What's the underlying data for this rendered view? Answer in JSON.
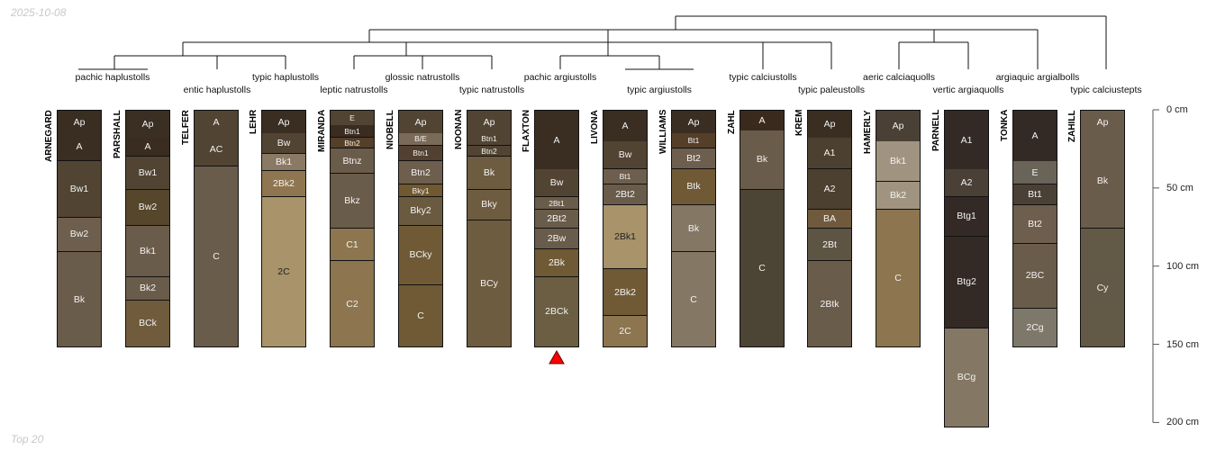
{
  "date": "2025-10-08",
  "footer": "Top 20",
  "taxa": [
    {
      "label": "pachic haplustolls",
      "row": 0
    },
    {
      "label": "entic haplustolls",
      "row": 1
    },
    {
      "label": "typic haplustolls",
      "row": 0
    },
    {
      "label": "leptic natrustolls",
      "row": 1
    },
    {
      "label": "glossic natrustolls",
      "row": 0
    },
    {
      "label": "typic natrustolls",
      "row": 1
    },
    {
      "label": "pachic argiustolls",
      "row": 0
    },
    {
      "label": "typic argiustolls",
      "row": 1
    },
    {
      "label": "typic calciustolls",
      "row": 0
    },
    {
      "label": "typic paleustolls",
      "row": 1
    },
    {
      "label": "aeric calciaquolls",
      "row": 0
    },
    {
      "label": "vertic argiaquolls",
      "row": 1
    },
    {
      "label": "argiaquic argialbolls",
      "row": 0
    },
    {
      "label": "typic calciustepts",
      "row": 1
    }
  ],
  "depth_axis": {
    "ticks": [
      0,
      50,
      100,
      150,
      200
    ],
    "unit": "cm",
    "labels": [
      "0 cm",
      "50 cm",
      "100 cm",
      "150 cm",
      "200 cm"
    ]
  },
  "marker_color": "#ff0000",
  "marked_profile": "FLAXTON",
  "profiles": [
    {
      "name": "ARNEGARD",
      "horizons": [
        [
          "Ap",
          0,
          15,
          "#3a2e22"
        ],
        [
          "A",
          15,
          33,
          "#3a2e22"
        ],
        [
          "Bw1",
          33,
          69,
          "#524433"
        ],
        [
          "Bw2",
          69,
          91,
          "#6e5e4d"
        ],
        [
          "Bk",
          91,
          152,
          "#6a5c4a"
        ]
      ]
    },
    {
      "name": "PARSHALL",
      "horizons": [
        [
          "Ap",
          0,
          18,
          "#3b2e22"
        ],
        [
          "A",
          18,
          30,
          "#3a2c20"
        ],
        [
          "Bw1",
          30,
          51,
          "#524433"
        ],
        [
          "Bw2",
          51,
          74,
          "#55462c"
        ],
        [
          "Bk1",
          74,
          107,
          "#6a5c4a"
        ],
        [
          "Bk2",
          107,
          122,
          "#6a5c4a"
        ],
        [
          "BCk",
          122,
          152,
          "#705c3c"
        ]
      ]
    },
    {
      "name": "TELFER",
      "horizons": [
        [
          "A",
          0,
          15,
          "#524433"
        ],
        [
          "AC",
          15,
          36,
          "#524433"
        ],
        [
          "C",
          36,
          152,
          "#6a5c4a"
        ]
      ]
    },
    {
      "name": "LEHR",
      "horizons": [
        [
          "Ap",
          0,
          15,
          "#3a2e22"
        ],
        [
          "Bw",
          15,
          28,
          "#524433"
        ],
        [
          "Bk1",
          28,
          39,
          "#8a7a64"
        ],
        [
          "2Bk2",
          39,
          56,
          "#8f7550"
        ],
        [
          "2C",
          56,
          152,
          "#a8936a"
        ]
      ]
    },
    {
      "name": "MIRANDA",
      "horizons": [
        [
          "E",
          0,
          10,
          "#524433"
        ],
        [
          "Btn1",
          10,
          18,
          "#3a2c20"
        ],
        [
          "Btn2",
          18,
          25,
          "#553f28"
        ],
        [
          "Btnz",
          25,
          41,
          "#6a5c4a"
        ],
        [
          "Bkz",
          41,
          76,
          "#6a5c4a"
        ],
        [
          "C1",
          76,
          97,
          "#8c754f"
        ],
        [
          "C2",
          97,
          152,
          "#8c754f"
        ]
      ]
    },
    {
      "name": "NIOBELL",
      "horizons": [
        [
          "Ap",
          0,
          15,
          "#524433"
        ],
        [
          "B/E",
          15,
          23,
          "#7a6a58"
        ],
        [
          "Btn1",
          23,
          33,
          "#524030"
        ],
        [
          "Btn2",
          33,
          48,
          "#6e5e4d"
        ],
        [
          "Bky1",
          48,
          56,
          "#705830"
        ],
        [
          "Bky2",
          56,
          74,
          "#6a5a40"
        ],
        [
          "BCky",
          74,
          112,
          "#705a36"
        ],
        [
          "C",
          112,
          152,
          "#705a36"
        ]
      ]
    },
    {
      "name": "NOONAN",
      "horizons": [
        [
          "Ap",
          0,
          15,
          "#524433"
        ],
        [
          "Btn1",
          15,
          23,
          "#524433"
        ],
        [
          "Btn2",
          23,
          30,
          "#524433"
        ],
        [
          "Bk",
          30,
          51,
          "#6e5c40"
        ],
        [
          "Bky",
          51,
          71,
          "#6e5c40"
        ],
        [
          "BCy",
          71,
          152,
          "#6e5c40"
        ]
      ]
    },
    {
      "name": "FLAXTON",
      "horizons": [
        [
          "A",
          0,
          38,
          "#3a2e22"
        ],
        [
          "Bw",
          38,
          56,
          "#524433"
        ],
        [
          "2Bt1",
          56,
          64,
          "#6a5c4a"
        ],
        [
          "2Bt2",
          64,
          76,
          "#6a5c4a"
        ],
        [
          "2Bw",
          76,
          89,
          "#6a5c4a"
        ],
        [
          "2Bk",
          89,
          107,
          "#705a36"
        ],
        [
          "2BCk",
          107,
          152,
          "#6b5e42"
        ]
      ]
    },
    {
      "name": "LIVONA",
      "horizons": [
        [
          "A",
          0,
          20,
          "#3a2e22"
        ],
        [
          "Bw",
          20,
          38,
          "#524433"
        ],
        [
          "Bt1",
          38,
          48,
          "#6e5e4d"
        ],
        [
          "2Bt2",
          48,
          61,
          "#6a5c4a"
        ],
        [
          "2Bk1",
          61,
          102,
          "#a8936a"
        ],
        [
          "2Bk2",
          102,
          132,
          "#705a36"
        ],
        [
          "2C",
          132,
          152,
          "#8c754f"
        ]
      ]
    },
    {
      "name": "WILLIAMS",
      "horizons": [
        [
          "Ap",
          0,
          15,
          "#3a2e22"
        ],
        [
          "Bt1",
          15,
          25,
          "#553f28"
        ],
        [
          "Bt2",
          25,
          38,
          "#6e5e4d"
        ],
        [
          "Btk",
          38,
          61,
          "#705a36"
        ],
        [
          "Bk",
          61,
          91,
          "#847764"
        ],
        [
          "C",
          91,
          152,
          "#847764"
        ]
      ]
    },
    {
      "name": "ZAHL",
      "horizons": [
        [
          "A",
          0,
          13,
          "#3a2a1e"
        ],
        [
          "Bk",
          13,
          51,
          "#6a5c4a"
        ],
        [
          "C",
          51,
          152,
          "#4c4434"
        ]
      ]
    },
    {
      "name": "KREM",
      "horizons": [
        [
          "Ap",
          0,
          18,
          "#3a2e22"
        ],
        [
          "A1",
          18,
          38,
          "#4c4030"
        ],
        [
          "A2",
          38,
          64,
          "#4c4030"
        ],
        [
          "BA",
          64,
          76,
          "#705a3e"
        ],
        [
          "2Bt",
          76,
          97,
          "#5e5444"
        ],
        [
          "2Btk",
          97,
          152,
          "#6a5c4a"
        ]
      ]
    },
    {
      "name": "HAMERLY",
      "horizons": [
        [
          "Ap",
          0,
          20,
          "#4a4036"
        ],
        [
          "Bk1",
          20,
          46,
          "#a09480"
        ],
        [
          "Bk2",
          46,
          64,
          "#a09480"
        ],
        [
          "C",
          64,
          152,
          "#8c754f"
        ]
      ]
    },
    {
      "name": "PARNELL",
      "horizons": [
        [
          "A1",
          0,
          38,
          "#332a25"
        ],
        [
          "A2",
          38,
          56,
          "#4a4036"
        ],
        [
          "Btg1",
          56,
          81,
          "#332a25"
        ],
        [
          "Btg2",
          81,
          140,
          "#332a25"
        ],
        [
          "BCg",
          140,
          203,
          "#847764"
        ]
      ]
    },
    {
      "name": "TONKA",
      "horizons": [
        [
          "A",
          0,
          33,
          "#332a25"
        ],
        [
          "E",
          33,
          48,
          "#6a6458"
        ],
        [
          "Bt1",
          48,
          61,
          "#4a4036"
        ],
        [
          "Bt2",
          61,
          86,
          "#6e5e4d"
        ],
        [
          "2BC",
          86,
          127,
          "#6a5c4a"
        ],
        [
          "2Cg",
          127,
          152,
          "#7e786a"
        ]
      ]
    },
    {
      "name": "ZAHILL",
      "horizons": [
        [
          "Ap",
          0,
          15,
          "#6a5c4a"
        ],
        [
          "Bk",
          15,
          76,
          "#6a5c4a"
        ],
        [
          "Cy",
          76,
          152,
          "#625a46"
        ]
      ]
    }
  ]
}
